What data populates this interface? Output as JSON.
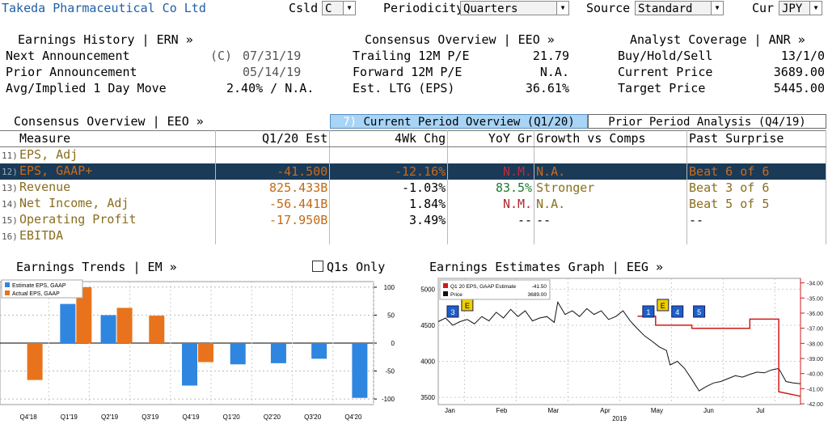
{
  "header": {
    "company": "Takeda Pharmaceutical Co Ltd",
    "csld_label": "Csld",
    "csld_value": "C",
    "periodicity_label": "Periodicity",
    "periodicity_value": "Quarters",
    "source_label": "Source",
    "source_value": "Standard",
    "cur_label": "Cur",
    "cur_value": "JPY"
  },
  "earnings_history": {
    "title": "Earnings History | ERN »",
    "next_label": "Next Announcement",
    "next_flag": "(C)",
    "next_value": "07/31/19",
    "prior_label": "Prior Announcement",
    "prior_value": "05/14/19",
    "move_label": "Avg/Implied 1 Day Move",
    "move_value": "2.40% / N.A."
  },
  "consensus_top": {
    "title": "Consensus Overview | EEO »",
    "rows": [
      {
        "label": "Trailing 12M P/E",
        "value": "21.79"
      },
      {
        "label": "Forward 12M P/E",
        "value": "N.A."
      },
      {
        "label": "Est. LTG (EPS)",
        "value": "36.61%"
      }
    ]
  },
  "analyst": {
    "title": "Analyst Coverage | ANR »",
    "rows": [
      {
        "label": "Buy/Hold/Sell",
        "value": "13/1/0"
      },
      {
        "label": "Current Price",
        "value": "3689.00"
      },
      {
        "label": "Target Price",
        "value": "5445.00"
      }
    ]
  },
  "overview": {
    "title": "Consensus Overview | EEO »",
    "tab1_num": "7)",
    "tab1_label": "Current Period Overview (Q1/20)",
    "tab2_label": "Prior Period Analysis (Q4/19)",
    "columns": [
      "Measure",
      "Q1/20 Est",
      "4Wk Chg",
      "YoY Gr",
      "Growth vs Comps",
      "Past Surprise"
    ],
    "rows": [
      {
        "n": "11)",
        "measure": "EPS, Adj",
        "est": "",
        "chg": "",
        "yoy": "",
        "growth": "",
        "surprise": ""
      },
      {
        "n": "12)",
        "measure": "EPS, GAAP+",
        "est": "-41.500",
        "chg": "-12.16%",
        "yoy": "N.M.",
        "growth": "N.A.",
        "surprise": "Beat 6 of 6"
      },
      {
        "n": "13)",
        "measure": "Revenue",
        "est": "825.433B",
        "chg": "-1.03%",
        "yoy": "83.5%",
        "growth": "Stronger",
        "surprise": "Beat 3 of 6"
      },
      {
        "n": "14)",
        "measure": "Net Income, Adj",
        "est": "-56.441B",
        "chg": "1.84%",
        "yoy": "N.M.",
        "growth": "N.A.",
        "surprise": "Beat 5 of 5"
      },
      {
        "n": "15)",
        "measure": "Operating Profit",
        "est": "-17.950B",
        "chg": "3.49%",
        "yoy": "--",
        "growth": "--",
        "surprise": "--"
      },
      {
        "n": "16)",
        "measure": "EBITDA",
        "est": "",
        "chg": "",
        "yoy": "",
        "growth": "",
        "surprise": ""
      }
    ]
  },
  "trends": {
    "title": "Earnings Trends | EM »",
    "q1s_label": "Q1s Only"
  },
  "estimates_graph": {
    "title": "Earnings Estimates Graph | EEG »"
  },
  "colors": {
    "estimate": "#2f86e0",
    "actual": "#e8731c",
    "est_line": "#d11a1a",
    "price": "#111111",
    "highlight_row": "#1a3a57"
  },
  "chart_data": [
    {
      "type": "bar",
      "categories": [
        "Q4'18",
        "Q1'19",
        "Q2'19",
        "Q3'19",
        "Q4'19",
        "Q1'20",
        "Q2'20",
        "Q3'20",
        "Q4'20"
      ],
      "series": [
        {
          "name": "Estimate EPS, GAAP",
          "values": [
            null,
            70,
            50,
            null,
            -76,
            -38,
            -36,
            -28,
            -98
          ]
        },
        {
          "name": "Actual EPS, GAAP",
          "values": [
            -66,
            100,
            63,
            49,
            -34,
            null,
            null,
            null,
            null
          ]
        }
      ],
      "ylim": [
        -110,
        110
      ],
      "yticks": [
        100,
        50,
        0,
        -50,
        -100
      ],
      "grid": true,
      "legend": "top-left"
    },
    {
      "type": "line",
      "x_ticks": [
        "Jan",
        "Feb",
        "Mar",
        "Apr",
        "May",
        "Jun",
        "Jul"
      ],
      "x_year": "2019",
      "legend_entries": [
        {
          "name": "Q1 20 EPS, GAAP Estimate",
          "value": "-41.50"
        },
        {
          "name": "Price",
          "value": "3689.00"
        }
      ],
      "left_ticks": [
        5000,
        4500,
        4000,
        3500
      ],
      "left_ylim": [
        3400,
        5150
      ],
      "right_ticks": [
        "-34.00",
        "-35.00",
        "-36.00",
        "-37.00",
        "-38.00",
        "-39.00",
        "-40.00",
        "-41.00",
        "-42.00"
      ],
      "right_ylim": [
        -42.05,
        -33.7
      ],
      "markers": [
        {
          "type": "3",
          "x": 0.02
        },
        {
          "type": "E",
          "x": 0.06
        },
        {
          "type": "1",
          "x": 0.56
        },
        {
          "type": "E",
          "x": 0.6
        },
        {
          "type": "4",
          "x": 0.64
        },
        {
          "type": "5",
          "x": 0.7
        }
      ],
      "estimate_series": [
        [
          0.55,
          -36.2
        ],
        [
          0.6,
          -36.2
        ],
        [
          0.6,
          -36.8
        ],
        [
          0.7,
          -36.8
        ],
        [
          0.7,
          -37.0
        ],
        [
          0.86,
          -37.0
        ],
        [
          0.86,
          -36.4
        ],
        [
          0.94,
          -36.4
        ],
        [
          0.94,
          -41.2
        ],
        [
          1.0,
          -41.5
        ]
      ],
      "price_series": [
        [
          0.0,
          4550
        ],
        [
          0.02,
          4600
        ],
        [
          0.04,
          4500
        ],
        [
          0.06,
          4550
        ],
        [
          0.08,
          4580
        ],
        [
          0.1,
          4520
        ],
        [
          0.12,
          4620
        ],
        [
          0.14,
          4560
        ],
        [
          0.16,
          4680
        ],
        [
          0.18,
          4600
        ],
        [
          0.2,
          4720
        ],
        [
          0.22,
          4620
        ],
        [
          0.24,
          4700
        ],
        [
          0.26,
          4560
        ],
        [
          0.28,
          4600
        ],
        [
          0.3,
          4620
        ],
        [
          0.32,
          4540
        ],
        [
          0.33,
          4820
        ],
        [
          0.35,
          4650
        ],
        [
          0.37,
          4700
        ],
        [
          0.39,
          4620
        ],
        [
          0.41,
          4730
        ],
        [
          0.43,
          4650
        ],
        [
          0.45,
          4700
        ],
        [
          0.47,
          4580
        ],
        [
          0.49,
          4620
        ],
        [
          0.51,
          4700
        ],
        [
          0.53,
          4560
        ],
        [
          0.55,
          4450
        ],
        [
          0.57,
          4350
        ],
        [
          0.59,
          4280
        ],
        [
          0.61,
          4200
        ],
        [
          0.63,
          4150
        ],
        [
          0.64,
          3950
        ],
        [
          0.66,
          4000
        ],
        [
          0.68,
          3900
        ],
        [
          0.7,
          3750
        ],
        [
          0.72,
          3590
        ],
        [
          0.74,
          3650
        ],
        [
          0.76,
          3700
        ],
        [
          0.78,
          3720
        ],
        [
          0.8,
          3760
        ],
        [
          0.82,
          3800
        ],
        [
          0.84,
          3780
        ],
        [
          0.86,
          3820
        ],
        [
          0.88,
          3850
        ],
        [
          0.9,
          3840
        ],
        [
          0.92,
          3880
        ],
        [
          0.94,
          3900
        ],
        [
          0.96,
          3720
        ],
        [
          0.98,
          3700
        ],
        [
          1.0,
          3689
        ]
      ]
    }
  ]
}
